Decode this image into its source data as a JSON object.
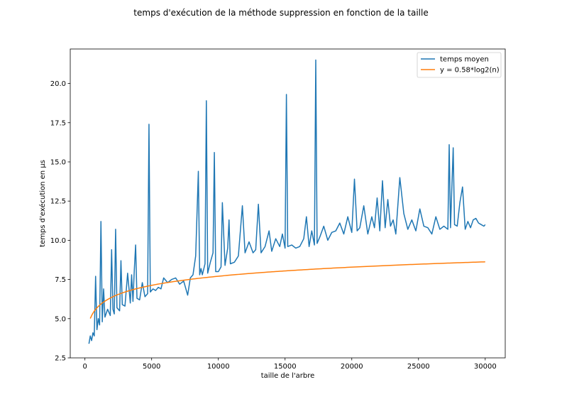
{
  "chart_data": {
    "type": "line",
    "title": "temps d'exécution de la méthode suppression en fonction de la taille",
    "xlabel": "taille de l'arbre",
    "ylabel": "temps d'exécution en µs",
    "xlim": [
      -1100,
      31500
    ],
    "ylim": [
      2.5,
      22.2
    ],
    "xticks": [
      0,
      5000,
      10000,
      15000,
      20000,
      25000,
      30000
    ],
    "xtick_labels": [
      "0",
      "5000",
      "10000",
      "15000",
      "20000",
      "25000",
      "30000"
    ],
    "yticks": [
      2.5,
      5.0,
      7.5,
      10.0,
      12.5,
      15.0,
      17.5,
      20.0
    ],
    "ytick_labels": [
      "2.5",
      "5.0",
      "7.5",
      "10.0",
      "12.5",
      "15.0",
      "17.5",
      "20.0"
    ],
    "grid": false,
    "legend_position": "top-right",
    "series": [
      {
        "name": "temps moyen",
        "color": "#1f77b4",
        "points": [
          [
            300,
            3.4
          ],
          [
            400,
            3.9
          ],
          [
            500,
            3.6
          ],
          [
            600,
            4.1
          ],
          [
            700,
            3.9
          ],
          [
            800,
            7.7
          ],
          [
            900,
            4.3
          ],
          [
            1000,
            5.0
          ],
          [
            1100,
            4.6
          ],
          [
            1200,
            11.2
          ],
          [
            1300,
            4.8
          ],
          [
            1400,
            6.9
          ],
          [
            1500,
            5.1
          ],
          [
            1700,
            5.6
          ],
          [
            1900,
            5.2
          ],
          [
            2000,
            9.4
          ],
          [
            2100,
            5.6
          ],
          [
            2200,
            5.3
          ],
          [
            2300,
            10.7
          ],
          [
            2400,
            5.7
          ],
          [
            2600,
            5.5
          ],
          [
            2700,
            8.7
          ],
          [
            2800,
            5.9
          ],
          [
            3000,
            5.8
          ],
          [
            3200,
            7.9
          ],
          [
            3400,
            6.0
          ],
          [
            3500,
            7.8
          ],
          [
            3600,
            6.1
          ],
          [
            3700,
            8.1
          ],
          [
            3800,
            9.7
          ],
          [
            3900,
            6.3
          ],
          [
            4100,
            6.2
          ],
          [
            4300,
            7.3
          ],
          [
            4500,
            6.4
          ],
          [
            4700,
            6.6
          ],
          [
            4800,
            17.4
          ],
          [
            4900,
            6.7
          ],
          [
            5100,
            6.9
          ],
          [
            5300,
            6.8
          ],
          [
            5500,
            7.0
          ],
          [
            5700,
            6.9
          ],
          [
            5900,
            7.6
          ],
          [
            6200,
            7.3
          ],
          [
            6500,
            7.5
          ],
          [
            6800,
            7.6
          ],
          [
            7100,
            7.2
          ],
          [
            7400,
            7.4
          ],
          [
            7700,
            6.5
          ],
          [
            7900,
            7.6
          ],
          [
            8100,
            7.8
          ],
          [
            8300,
            9.0
          ],
          [
            8500,
            14.4
          ],
          [
            8600,
            7.8
          ],
          [
            8700,
            8.2
          ],
          [
            8800,
            7.8
          ],
          [
            9000,
            8.5
          ],
          [
            9100,
            18.9
          ],
          [
            9200,
            7.9
          ],
          [
            9400,
            8.6
          ],
          [
            9600,
            9.2
          ],
          [
            9700,
            15.6
          ],
          [
            9800,
            8.0
          ],
          [
            10000,
            8.0
          ],
          [
            10200,
            8.3
          ],
          [
            10300,
            12.4
          ],
          [
            10500,
            8.4
          ],
          [
            10700,
            9.5
          ],
          [
            10800,
            11.3
          ],
          [
            10900,
            8.5
          ],
          [
            11200,
            8.6
          ],
          [
            11500,
            9.0
          ],
          [
            11800,
            12.2
          ],
          [
            12000,
            9.2
          ],
          [
            12300,
            9.9
          ],
          [
            12600,
            9.2
          ],
          [
            12800,
            9.4
          ],
          [
            13000,
            12.3
          ],
          [
            13200,
            9.2
          ],
          [
            13500,
            9.6
          ],
          [
            13800,
            10.6
          ],
          [
            14000,
            9.3
          ],
          [
            14300,
            10.1
          ],
          [
            14600,
            9.6
          ],
          [
            14800,
            10.4
          ],
          [
            15000,
            9.5
          ],
          [
            15100,
            19.3
          ],
          [
            15200,
            9.6
          ],
          [
            15500,
            9.7
          ],
          [
            15800,
            9.5
          ],
          [
            16100,
            9.6
          ],
          [
            16400,
            10.1
          ],
          [
            16600,
            11.5
          ],
          [
            16800,
            9.6
          ],
          [
            17000,
            10.6
          ],
          [
            17200,
            9.7
          ],
          [
            17300,
            21.5
          ],
          [
            17400,
            9.8
          ],
          [
            17600,
            10.2
          ],
          [
            17900,
            10.9
          ],
          [
            18200,
            10.0
          ],
          [
            18500,
            10.5
          ],
          [
            18800,
            10.6
          ],
          [
            19100,
            11.1
          ],
          [
            19400,
            10.4
          ],
          [
            19700,
            11.5
          ],
          [
            20000,
            10.5
          ],
          [
            20200,
            13.9
          ],
          [
            20400,
            10.6
          ],
          [
            20600,
            10.8
          ],
          [
            20900,
            12.2
          ],
          [
            21200,
            10.4
          ],
          [
            21500,
            11.5
          ],
          [
            21700,
            10.8
          ],
          [
            21900,
            12.7
          ],
          [
            22100,
            10.6
          ],
          [
            22300,
            13.8
          ],
          [
            22500,
            10.8
          ],
          [
            22700,
            12.6
          ],
          [
            22900,
            10.9
          ],
          [
            23100,
            11.3
          ],
          [
            23300,
            10.4
          ],
          [
            23600,
            14.0
          ],
          [
            23900,
            11.7
          ],
          [
            24200,
            10.7
          ],
          [
            24500,
            11.3
          ],
          [
            24800,
            10.6
          ],
          [
            25100,
            12.0
          ],
          [
            25400,
            10.9
          ],
          [
            25700,
            10.8
          ],
          [
            26000,
            10.4
          ],
          [
            26300,
            11.5
          ],
          [
            26600,
            10.7
          ],
          [
            26900,
            10.9
          ],
          [
            27200,
            10.7
          ],
          [
            27300,
            16.1
          ],
          [
            27400,
            10.8
          ],
          [
            27600,
            15.9
          ],
          [
            27700,
            11.0
          ],
          [
            27900,
            10.9
          ],
          [
            28100,
            12.4
          ],
          [
            28300,
            13.4
          ],
          [
            28500,
            10.7
          ],
          [
            28700,
            11.2
          ],
          [
            28900,
            10.8
          ],
          [
            29100,
            11.3
          ],
          [
            29300,
            11.4
          ],
          [
            29500,
            11.1
          ],
          [
            29700,
            11.0
          ],
          [
            29900,
            10.9
          ],
          [
            30000,
            11.0
          ]
        ]
      },
      {
        "name": "y = 0.58*log2(n)",
        "color": "#ff7f0e",
        "function": "0.58*log2(n)",
        "x_range": [
          400,
          30000
        ]
      }
    ]
  }
}
